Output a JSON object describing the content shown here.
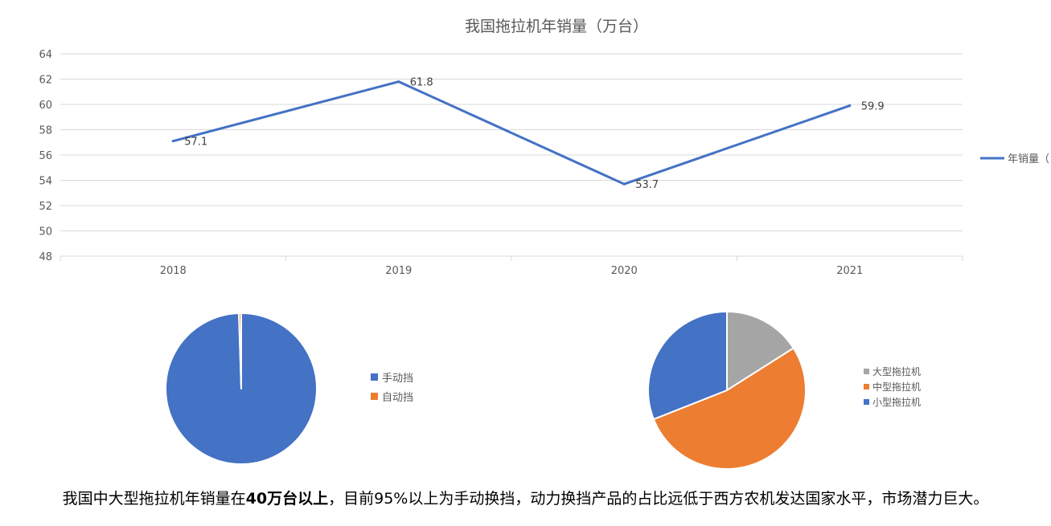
{
  "chart_data": [
    {
      "type": "line",
      "title": "我国拖拉机年销量（万台）",
      "categories": [
        "2018",
        "2019",
        "2020",
        "2021"
      ],
      "series": [
        {
          "name": "年销量（万台）",
          "legend_visible_text": "年销量（",
          "values": [
            57.1,
            61.8,
            53.7,
            59.9
          ],
          "color": "#4472C4"
        }
      ],
      "data_labels": [
        "57.1",
        "61.8",
        "53.7",
        "59.9"
      ],
      "ylim": [
        48,
        64
      ],
      "yticks": [
        "48",
        "50",
        "52",
        "54",
        "56",
        "58",
        "60",
        "62",
        "64"
      ],
      "grid": true,
      "legend_position": "right"
    },
    {
      "type": "pie",
      "categories": [
        "手动挡",
        "自动挡"
      ],
      "values": [
        99.5,
        0.5
      ],
      "colors": [
        "#4472C4",
        "#ED7D31"
      ],
      "legend_position": "right"
    },
    {
      "type": "pie",
      "categories": [
        "大型拖拉机",
        "中型拖拉机",
        "小型拖拉机"
      ],
      "values": [
        16,
        53,
        31
      ],
      "colors": [
        "#A5A5A5",
        "#ED7D31",
        "#4472C4"
      ],
      "legend_position": "right"
    }
  ],
  "caption": {
    "before": "我国中大型拖拉机年销量在",
    "bold": "40万台以上",
    "after": "，目前95%以上为手动换挡，动力换挡产品的占比远低于西方农机发达国家水平，市场潜力巨大。"
  }
}
